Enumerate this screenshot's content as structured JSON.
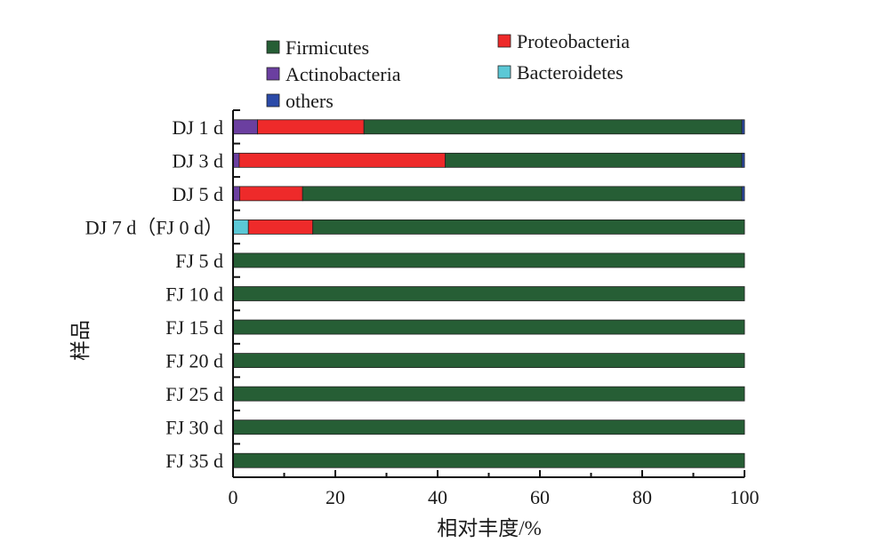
{
  "chart_data": {
    "type": "bar",
    "orientation": "horizontal",
    "stacked": true,
    "xlabel": "相对丰度/%",
    "ylabel": "样品",
    "xlim": [
      0,
      100
    ],
    "xticks": [
      0,
      20,
      40,
      60,
      80,
      100
    ],
    "grid": false,
    "legend_position": "top",
    "categories": [
      "DJ 1 d",
      "DJ 3 d",
      "DJ 5 d",
      "DJ 7 d（FJ 0 d）",
      "FJ 5 d",
      "FJ 10 d",
      "FJ 15 d",
      "FJ 20 d",
      "FJ 25 d",
      "FJ 30 d",
      "FJ 35 d"
    ],
    "series": [
      {
        "name": "Actinobacteria",
        "color": "#6b3fa0",
        "values": [
          4.8,
          1.2,
          1.3,
          0,
          0,
          0,
          0,
          0,
          0,
          0,
          0
        ]
      },
      {
        "name": "Bacteroidetes",
        "color": "#5bc8d6",
        "values": [
          0,
          0,
          0,
          3.0,
          0,
          0,
          0,
          0,
          0,
          0,
          0
        ]
      },
      {
        "name": "Proteobacteria",
        "color": "#ee2a2a",
        "values": [
          20.8,
          40.3,
          12.3,
          12.6,
          0,
          0,
          0,
          0,
          0,
          0,
          0
        ]
      },
      {
        "name": "Firmicutes",
        "color": "#265e35",
        "values": [
          73.9,
          58.0,
          85.9,
          84.4,
          100,
          100,
          100,
          100,
          100,
          100,
          100
        ]
      },
      {
        "name": "others",
        "color": "#2b4aa8",
        "values": [
          0.5,
          0.5,
          0.5,
          0,
          0,
          0,
          0,
          0,
          0,
          0,
          0
        ]
      }
    ],
    "legend_entries": [
      {
        "name": "Firmicutes",
        "color": "#265e35"
      },
      {
        "name": "Proteobacteria",
        "color": "#ee2a2a"
      },
      {
        "name": "Actinobacteria",
        "color": "#6b3fa0"
      },
      {
        "name": "Bacteroidetes",
        "color": "#5bc8d6"
      },
      {
        "name": "others",
        "color": "#2b4aa8"
      }
    ]
  }
}
